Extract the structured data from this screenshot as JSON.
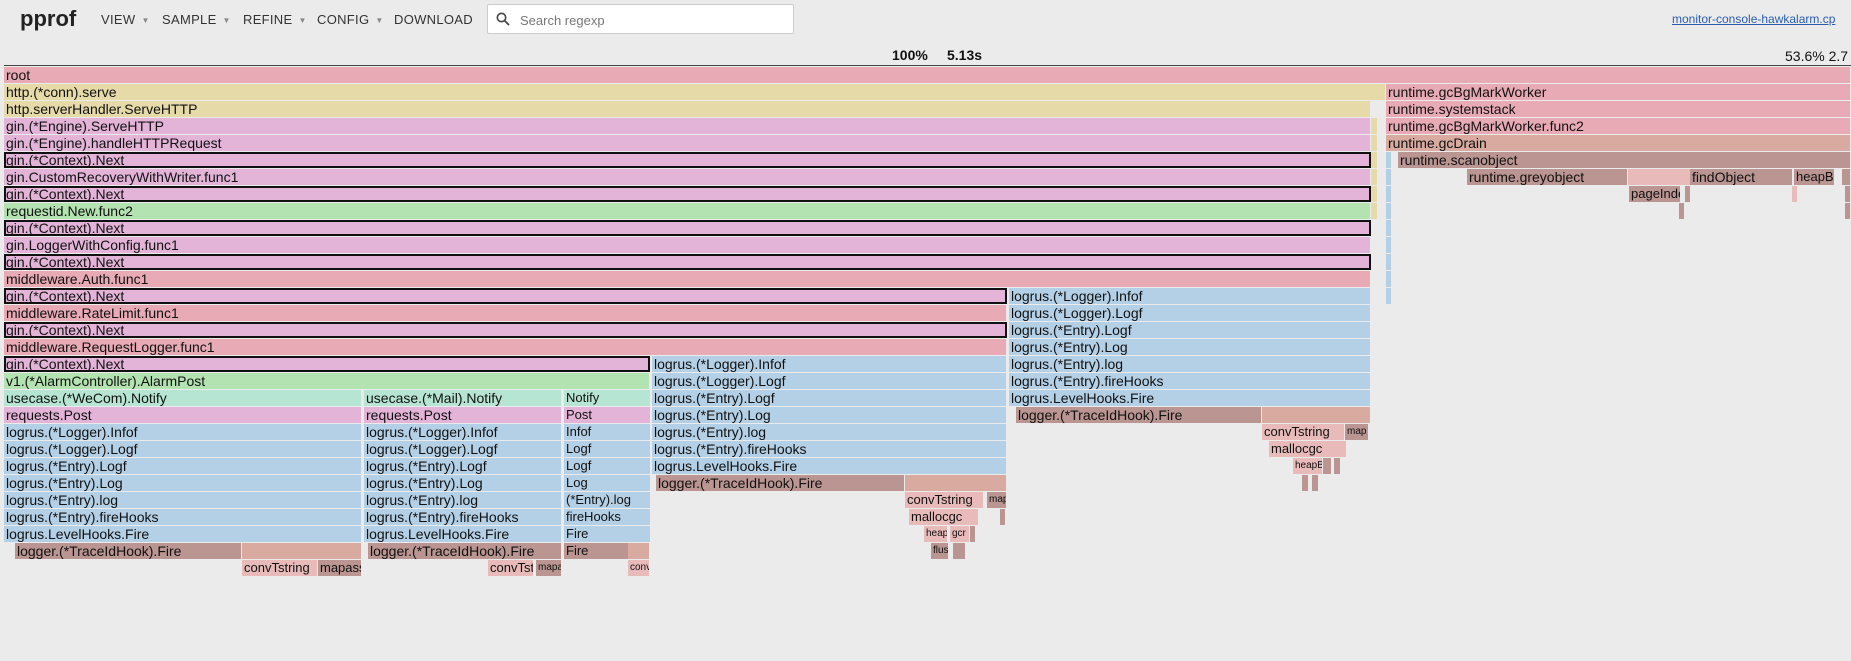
{
  "app": {
    "title": "pprof"
  },
  "menu": [
    {
      "label": "VIEW",
      "caret": true
    },
    {
      "label": "SAMPLE",
      "caret": true
    },
    {
      "label": "REFINE",
      "caret": true
    },
    {
      "label": "CONFIG",
      "caret": true
    },
    {
      "label": "DOWNLOAD",
      "caret": false
    }
  ],
  "search": {
    "placeholder": "Search regexp",
    "value": ""
  },
  "profile_link": "monitor-console-hawkalarm.cp",
  "stats": {
    "percent": "100%",
    "time": "5.13s",
    "right": "53.6% 2.7"
  },
  "colors": {
    "pink": "#e8aab4",
    "yellow": "#e6dba8",
    "magenta": "#e3b4d8",
    "green": "#b3e3b0",
    "blue": "#b4d0e6",
    "teal": "#b7e5d4",
    "brown": "#ba9592",
    "tan": "#d9aa9f",
    "rose": "#e8bbba"
  },
  "frames": [
    {
      "label": "root",
      "d": 0,
      "s": 0,
      "w": 100,
      "c": "pink"
    },
    {
      "label": "http.(*conn).serve",
      "d": 1,
      "s": 0,
      "w": 74.8,
      "c": "yellow"
    },
    {
      "label": "runtime.gcBgMarkWorker",
      "d": 1,
      "s": 74.8,
      "w": 25.2,
      "c": "pink"
    },
    {
      "label": "http.serverHandler.ServeHTTP",
      "d": 2,
      "s": 0,
      "w": 74.0,
      "c": "yellow"
    },
    {
      "label": "runtime.systemstack",
      "d": 2,
      "s": 74.8,
      "w": 25.2,
      "c": "pink"
    },
    {
      "label": "gin.(*Engine).ServeHTTP",
      "d": 3,
      "s": 0,
      "w": 74.0,
      "c": "magenta"
    },
    {
      "label": "runtime.gcBgMarkWorker.func2",
      "d": 3,
      "s": 74.8,
      "w": 25.2,
      "c": "pink"
    },
    {
      "label": "gin.(*Engine).handleHTTPRequest",
      "d": 4,
      "s": 0,
      "w": 74.0,
      "c": "magenta"
    },
    {
      "label": "runtime.gcDrain",
      "d": 4,
      "s": 74.8,
      "w": 25.2,
      "c": "tan"
    },
    {
      "label": "gin.(*Context).Next",
      "d": 5,
      "s": 0,
      "w": 74.0,
      "c": "magenta",
      "sel": true
    },
    {
      "label": "runtime.scanobject",
      "d": 5,
      "s": 75.5,
      "w": 24.5,
      "c": "brown"
    },
    {
      "label": "gin.CustomRecoveryWithWriter.func1",
      "d": 6,
      "s": 0,
      "w": 74.0,
      "c": "magenta"
    },
    {
      "label": "runtime.greyobject",
      "d": 6,
      "s": 79.2,
      "w": 8.7,
      "c": "brown"
    },
    {
      "label": "",
      "d": 6,
      "s": 87.9,
      "w": 3.4,
      "c": "rose"
    },
    {
      "label": "findObject",
      "d": 6,
      "s": 91.3,
      "w": 5.6,
      "c": "brown"
    },
    {
      "label": "heapB",
      "d": 6,
      "s": 96.9,
      "w": 2.2,
      "c": "brown"
    },
    {
      "label": "gin.(*Context).Next",
      "d": 7,
      "s": 0,
      "w": 74.0,
      "c": "magenta",
      "sel": true
    },
    {
      "label": "pageInde",
      "d": 7,
      "s": 88.0,
      "w": 2.8,
      "c": "brown"
    },
    {
      "label": "requestid.New.func2",
      "d": 8,
      "s": 0,
      "w": 74.0,
      "c": "green"
    },
    {
      "label": "gin.(*Context).Next",
      "d": 9,
      "s": 0,
      "w": 74.0,
      "c": "magenta",
      "sel": true
    },
    {
      "label": "gin.LoggerWithConfig.func1",
      "d": 10,
      "s": 0,
      "w": 74.0,
      "c": "magenta"
    },
    {
      "label": "gin.(*Context).Next",
      "d": 11,
      "s": 0,
      "w": 74.0,
      "c": "magenta",
      "sel": true
    },
    {
      "label": "middleware.Auth.func1",
      "d": 12,
      "s": 0,
      "w": 74.0,
      "c": "pink"
    },
    {
      "label": "gin.(*Context).Next",
      "d": 13,
      "s": 0,
      "w": 54.3,
      "c": "magenta",
      "sel": true
    },
    {
      "label": "logrus.(*Logger).Infof",
      "d": 13,
      "s": 54.4,
      "w": 19.6,
      "c": "blue"
    },
    {
      "label": "middleware.RateLimit.func1",
      "d": 14,
      "s": 0,
      "w": 54.3,
      "c": "pink"
    },
    {
      "label": "logrus.(*Logger).Logf",
      "d": 14,
      "s": 54.4,
      "w": 19.6,
      "c": "blue"
    },
    {
      "label": "gin.(*Context).Next",
      "d": 15,
      "s": 0,
      "w": 54.3,
      "c": "magenta",
      "sel": true
    },
    {
      "label": "logrus.(*Entry).Logf",
      "d": 15,
      "s": 54.4,
      "w": 19.6,
      "c": "blue"
    },
    {
      "label": "middleware.RequestLogger.func1",
      "d": 16,
      "s": 0,
      "w": 54.3,
      "c": "pink"
    },
    {
      "label": "logrus.(*Entry).Log",
      "d": 16,
      "s": 54.4,
      "w": 19.6,
      "c": "blue"
    },
    {
      "label": "gin.(*Context).Next",
      "d": 17,
      "s": 0,
      "w": 35.0,
      "c": "magenta",
      "sel": true
    },
    {
      "label": "logrus.(*Logger).Infof",
      "d": 17,
      "s": 35.1,
      "w": 19.2,
      "c": "blue"
    },
    {
      "label": "logrus.(*Entry).log",
      "d": 17,
      "s": 54.4,
      "w": 19.6,
      "c": "blue"
    },
    {
      "label": "v1.(*AlarmController).AlarmPost",
      "d": 18,
      "s": 0,
      "w": 35.0,
      "c": "green"
    },
    {
      "label": "logrus.(*Logger).Logf",
      "d": 18,
      "s": 35.1,
      "w": 19.2,
      "c": "blue"
    },
    {
      "label": "logrus.(*Entry).fireHooks",
      "d": 18,
      "s": 54.4,
      "w": 19.6,
      "c": "blue"
    },
    {
      "label": "usecase.(*WeCom).Notify",
      "d": 19,
      "s": 0,
      "w": 19.4,
      "c": "teal"
    },
    {
      "label": "usecase.(*Mail).Notify",
      "d": 19,
      "s": 19.5,
      "w": 10.7,
      "c": "teal"
    },
    {
      "label": "Notify",
      "d": 19,
      "s": 30.3,
      "w": 4.7,
      "c": "teal"
    },
    {
      "label": "logrus.(*Entry).Logf",
      "d": 19,
      "s": 35.1,
      "w": 19.2,
      "c": "blue"
    },
    {
      "label": "logrus.LevelHooks.Fire",
      "d": 19,
      "s": 54.4,
      "w": 19.6,
      "c": "blue"
    },
    {
      "label": "requests.Post",
      "d": 20,
      "s": 0,
      "w": 19.4,
      "c": "magenta"
    },
    {
      "label": "requests.Post",
      "d": 20,
      "s": 19.5,
      "w": 10.7,
      "c": "magenta"
    },
    {
      "label": "Post",
      "d": 20,
      "s": 30.3,
      "w": 4.7,
      "c": "magenta"
    },
    {
      "label": "logrus.(*Entry).Log",
      "d": 20,
      "s": 35.1,
      "w": 19.2,
      "c": "blue"
    },
    {
      "label": "logger.(*TraceIdHook).Fire",
      "d": 20,
      "s": 54.8,
      "w": 13.3,
      "c": "brown"
    },
    {
      "label": "",
      "d": 20,
      "s": 68.1,
      "w": 5.9,
      "c": "tan"
    },
    {
      "label": "logrus.(*Logger).Infof",
      "d": 21,
      "s": 0,
      "w": 19.4,
      "c": "blue"
    },
    {
      "label": "logrus.(*Logger).Infof",
      "d": 21,
      "s": 19.5,
      "w": 10.7,
      "c": "blue"
    },
    {
      "label": "Infof",
      "d": 21,
      "s": 30.3,
      "w": 4.7,
      "c": "blue"
    },
    {
      "label": "logrus.(*Entry).log",
      "d": 21,
      "s": 35.1,
      "w": 19.2,
      "c": "blue"
    },
    {
      "label": "convTstring",
      "d": 21,
      "s": 68.1,
      "w": 4.5,
      "c": "rose"
    },
    {
      "label": "map",
      "d": 21,
      "s": 72.6,
      "w": 1.3,
      "c": "brown"
    },
    {
      "label": "logrus.(*Logger).Logf",
      "d": 22,
      "s": 0,
      "w": 19.4,
      "c": "blue"
    },
    {
      "label": "logrus.(*Logger).Logf",
      "d": 22,
      "s": 19.5,
      "w": 10.7,
      "c": "blue"
    },
    {
      "label": "Logf",
      "d": 22,
      "s": 30.3,
      "w": 4.7,
      "c": "blue"
    },
    {
      "label": "logrus.(*Entry).fireHooks",
      "d": 22,
      "s": 35.1,
      "w": 19.2,
      "c": "blue"
    },
    {
      "label": "mallocgc",
      "d": 22,
      "s": 68.5,
      "w": 4.2,
      "c": "rose"
    },
    {
      "label": "logrus.(*Entry).Logf",
      "d": 23,
      "s": 0,
      "w": 19.4,
      "c": "blue"
    },
    {
      "label": "logrus.(*Entry).Logf",
      "d": 23,
      "s": 19.5,
      "w": 10.7,
      "c": "blue"
    },
    {
      "label": "Logf",
      "d": 23,
      "s": 30.3,
      "w": 4.7,
      "c": "blue"
    },
    {
      "label": "logrus.LevelHooks.Fire",
      "d": 23,
      "s": 35.1,
      "w": 19.2,
      "c": "blue"
    },
    {
      "label": "heapBits",
      "d": 23,
      "s": 69.8,
      "w": 1.6,
      "c": "rose"
    },
    {
      "label": "",
      "d": 23,
      "s": 71.4,
      "w": 0.5,
      "c": "brown"
    },
    {
      "label": "",
      "d": 23,
      "s": 72.0,
      "w": 0.4,
      "c": "brown"
    },
    {
      "label": "logrus.(*Entry).Log",
      "d": 24,
      "s": 0,
      "w": 19.4,
      "c": "blue"
    },
    {
      "label": "logrus.(*Entry).Log",
      "d": 24,
      "s": 19.5,
      "w": 10.7,
      "c": "blue"
    },
    {
      "label": "Log",
      "d": 24,
      "s": 30.3,
      "w": 4.7,
      "c": "blue"
    },
    {
      "label": "logger.(*TraceIdHook).Fire",
      "d": 24,
      "s": 35.3,
      "w": 13.5,
      "c": "brown"
    },
    {
      "label": "",
      "d": 24,
      "s": 48.8,
      "w": 5.5,
      "c": "tan"
    },
    {
      "label": "",
      "d": 24,
      "s": 70.3,
      "w": 0.4,
      "c": "brown"
    },
    {
      "label": "",
      "d": 24,
      "s": 70.8,
      "w": 0.4,
      "c": "brown"
    },
    {
      "label": "logrus.(*Entry).log",
      "d": 25,
      "s": 0,
      "w": 19.4,
      "c": "blue"
    },
    {
      "label": "logrus.(*Entry).log",
      "d": 25,
      "s": 19.5,
      "w": 10.7,
      "c": "blue"
    },
    {
      "label": "(*Entry).log",
      "d": 25,
      "s": 30.3,
      "w": 4.7,
      "c": "blue"
    },
    {
      "label": "convTstring",
      "d": 25,
      "s": 48.8,
      "w": 4.3,
      "c": "rose"
    },
    {
      "label": "map",
      "d": 25,
      "s": 53.2,
      "w": 1.1,
      "c": "brown"
    },
    {
      "label": "logrus.(*Entry).fireHooks",
      "d": 26,
      "s": 0,
      "w": 19.4,
      "c": "blue"
    },
    {
      "label": "logrus.(*Entry).fireHooks",
      "d": 26,
      "s": 19.5,
      "w": 10.7,
      "c": "blue"
    },
    {
      "label": "fireHooks",
      "d": 26,
      "s": 30.3,
      "w": 4.7,
      "c": "blue"
    },
    {
      "label": "mallocgc",
      "d": 26,
      "s": 49.0,
      "w": 3.8,
      "c": "rose"
    },
    {
      "label": "",
      "d": 26,
      "s": 53.9,
      "w": 0.3,
      "c": "brown"
    },
    {
      "label": "logrus.LevelHooks.Fire",
      "d": 27,
      "s": 0,
      "w": 19.4,
      "c": "blue"
    },
    {
      "label": "logrus.LevelHooks.Fire",
      "d": 27,
      "s": 19.5,
      "w": 10.7,
      "c": "blue"
    },
    {
      "label": "Fire",
      "d": 27,
      "s": 30.3,
      "w": 4.7,
      "c": "blue"
    },
    {
      "label": "heapB",
      "d": 27,
      "s": 49.8,
      "w": 1.3,
      "c": "rose"
    },
    {
      "label": "gcr",
      "d": 27,
      "s": 51.2,
      "w": 1.1,
      "c": "rose"
    },
    {
      "label": "",
      "d": 27,
      "s": 52.3,
      "w": 0.3,
      "c": "brown"
    },
    {
      "label": "logger.(*TraceIdHook).Fire",
      "d": 28,
      "s": 0.6,
      "w": 12.3,
      "c": "brown"
    },
    {
      "label": "",
      "d": 28,
      "s": 12.9,
      "w": 6.5,
      "c": "tan"
    },
    {
      "label": "logger.(*TraceIdHook).Fire",
      "d": 28,
      "s": 19.7,
      "w": 10.5,
      "c": "brown"
    },
    {
      "label": "Fire",
      "d": 28,
      "s": 30.3,
      "w": 3.5,
      "c": "brown"
    },
    {
      "label": "",
      "d": 28,
      "s": 33.8,
      "w": 1.2,
      "c": "tan"
    },
    {
      "label": "flus",
      "d": 28,
      "s": 50.2,
      "w": 1.0,
      "c": "brown"
    },
    {
      "label": "",
      "d": 28,
      "s": 51.4,
      "w": 0.7,
      "c": "brown"
    },
    {
      "label": "convTstring",
      "d": 29,
      "s": 12.9,
      "w": 4.1,
      "c": "rose"
    },
    {
      "label": "mapassi",
      "d": 29,
      "s": 17.0,
      "w": 2.4,
      "c": "brown"
    },
    {
      "label": "convTstri",
      "d": 29,
      "s": 26.2,
      "w": 2.5,
      "c": "rose"
    },
    {
      "label": "mapa",
      "d": 29,
      "s": 28.8,
      "w": 1.4,
      "c": "brown"
    },
    {
      "label": "conv",
      "d": 29,
      "s": 33.8,
      "w": 1.2,
      "c": "rose"
    },
    {
      "label": "",
      "d": 6,
      "s": 99.5,
      "w": 0.5,
      "c": "brown"
    },
    {
      "label": "",
      "d": 7,
      "s": 91.0,
      "w": 0.3,
      "c": "brown"
    },
    {
      "label": "",
      "d": 8,
      "s": 90.7,
      "w": 0.3,
      "c": "brown"
    },
    {
      "label": "",
      "d": 7,
      "s": 96.8,
      "w": 0.3,
      "c": "rose"
    },
    {
      "label": "",
      "d": 7,
      "s": 99.7,
      "w": 0.3,
      "c": "brown"
    },
    {
      "label": "",
      "d": 8,
      "s": 99.7,
      "w": 0.3,
      "c": "brown"
    },
    {
      "label": "",
      "d": 5,
      "s": 74.8,
      "w": 0.3,
      "c": "blue"
    },
    {
      "label": "",
      "d": 6,
      "s": 74.8,
      "w": 0.3,
      "c": "blue"
    },
    {
      "label": "",
      "d": 7,
      "s": 74.8,
      "w": 0.3,
      "c": "blue"
    },
    {
      "label": "",
      "d": 8,
      "s": 74.8,
      "w": 0.3,
      "c": "blue"
    },
    {
      "label": "",
      "d": 9,
      "s": 74.8,
      "w": 0.3,
      "c": "blue"
    },
    {
      "label": "",
      "d": 10,
      "s": 74.8,
      "w": 0.3,
      "c": "blue"
    },
    {
      "label": "",
      "d": 11,
      "s": 74.8,
      "w": 0.3,
      "c": "blue"
    },
    {
      "label": "",
      "d": 12,
      "s": 74.8,
      "w": 0.3,
      "c": "blue"
    },
    {
      "label": "",
      "d": 13,
      "s": 74.8,
      "w": 0.3,
      "c": "blue"
    },
    {
      "label": "",
      "d": 3,
      "s": 74.0,
      "w": 0.4,
      "c": "yellow"
    },
    {
      "label": "",
      "d": 4,
      "s": 74.0,
      "w": 0.4,
      "c": "yellow"
    },
    {
      "label": "",
      "d": 5,
      "s": 74.0,
      "w": 0.4,
      "c": "yellow"
    },
    {
      "label": "",
      "d": 6,
      "s": 74.0,
      "w": 0.4,
      "c": "yellow"
    },
    {
      "label": "",
      "d": 7,
      "s": 74.0,
      "w": 0.4,
      "c": "yellow"
    },
    {
      "label": "",
      "d": 8,
      "s": 74.0,
      "w": 0.4,
      "c": "yellow"
    }
  ]
}
